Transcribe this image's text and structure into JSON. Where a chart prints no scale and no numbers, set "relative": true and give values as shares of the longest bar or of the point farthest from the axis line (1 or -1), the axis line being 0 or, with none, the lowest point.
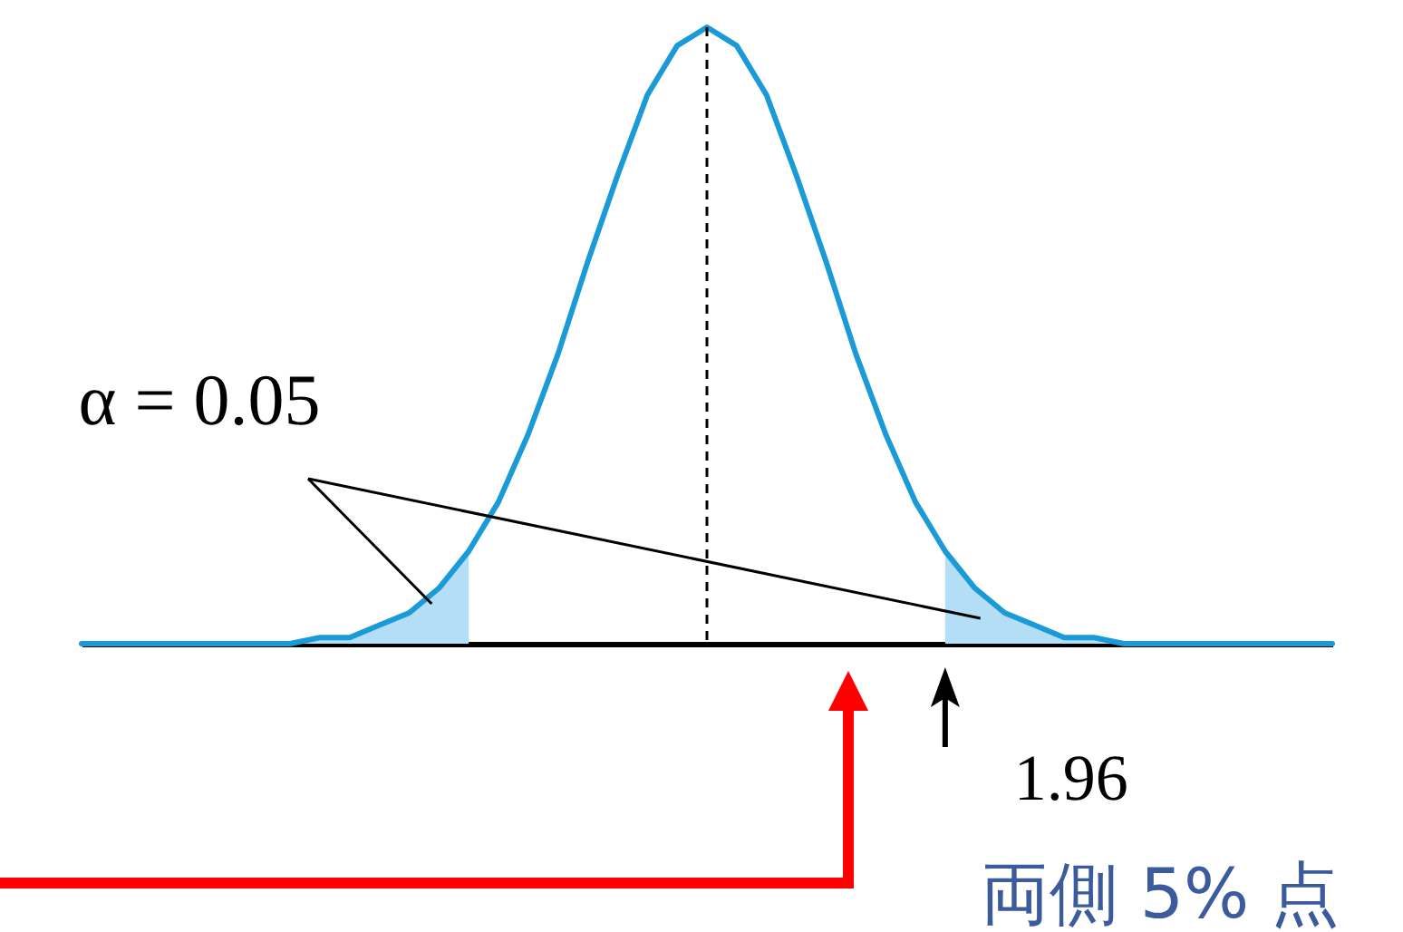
{
  "chart_data": {
    "type": "line",
    "relative": true,
    "categories": [
      null,
      null,
      null,
      null,
      null,
      null,
      null,
      null,
      null,
      null,
      null,
      null,
      null,
      null,
      null,
      null,
      null,
      null,
      null,
      null,
      null,
      null,
      null,
      null,
      null,
      null,
      null,
      null,
      null,
      null,
      null,
      null,
      null,
      null,
      null,
      null,
      null,
      null,
      null,
      null,
      null,
      null,
      null
    ],
    "series": [
      {
        "color": "#1a9ad6",
        "values": [
          0,
          0,
          0,
          0,
          0,
          0,
          0,
          0,
          0.01,
          0.01,
          0.03,
          0.05,
          0.09,
          0.15,
          0.23,
          0.34,
          0.47,
          0.62,
          0.76,
          0.89,
          0.97,
          1,
          0.97,
          0.89,
          0.76,
          0.62,
          0.47,
          0.34,
          0.23,
          0.15,
          0.09,
          0.05,
          0.03,
          0.01,
          0.01,
          0,
          0,
          0,
          0,
          0,
          0,
          0,
          0
        ]
      },
      {
        "type": "area",
        "color": "#b3def5",
        "values": [
          0,
          0,
          0,
          0,
          0,
          0,
          0,
          0,
          0.01,
          0.01,
          0.03,
          0.05,
          0.09,
          0.15,
          null,
          null,
          null,
          null,
          null,
          null,
          null,
          null,
          null,
          null,
          null,
          null,
          null,
          null,
          null,
          0.15,
          0.09,
          0.05,
          0.03,
          0.01,
          0.01,
          0,
          0,
          0,
          0,
          0,
          0,
          0,
          0
        ]
      }
    ],
    "annotations": [
      "α = 0.05",
      "両側 5% 点",
      "1.96"
    ]
  }
}
